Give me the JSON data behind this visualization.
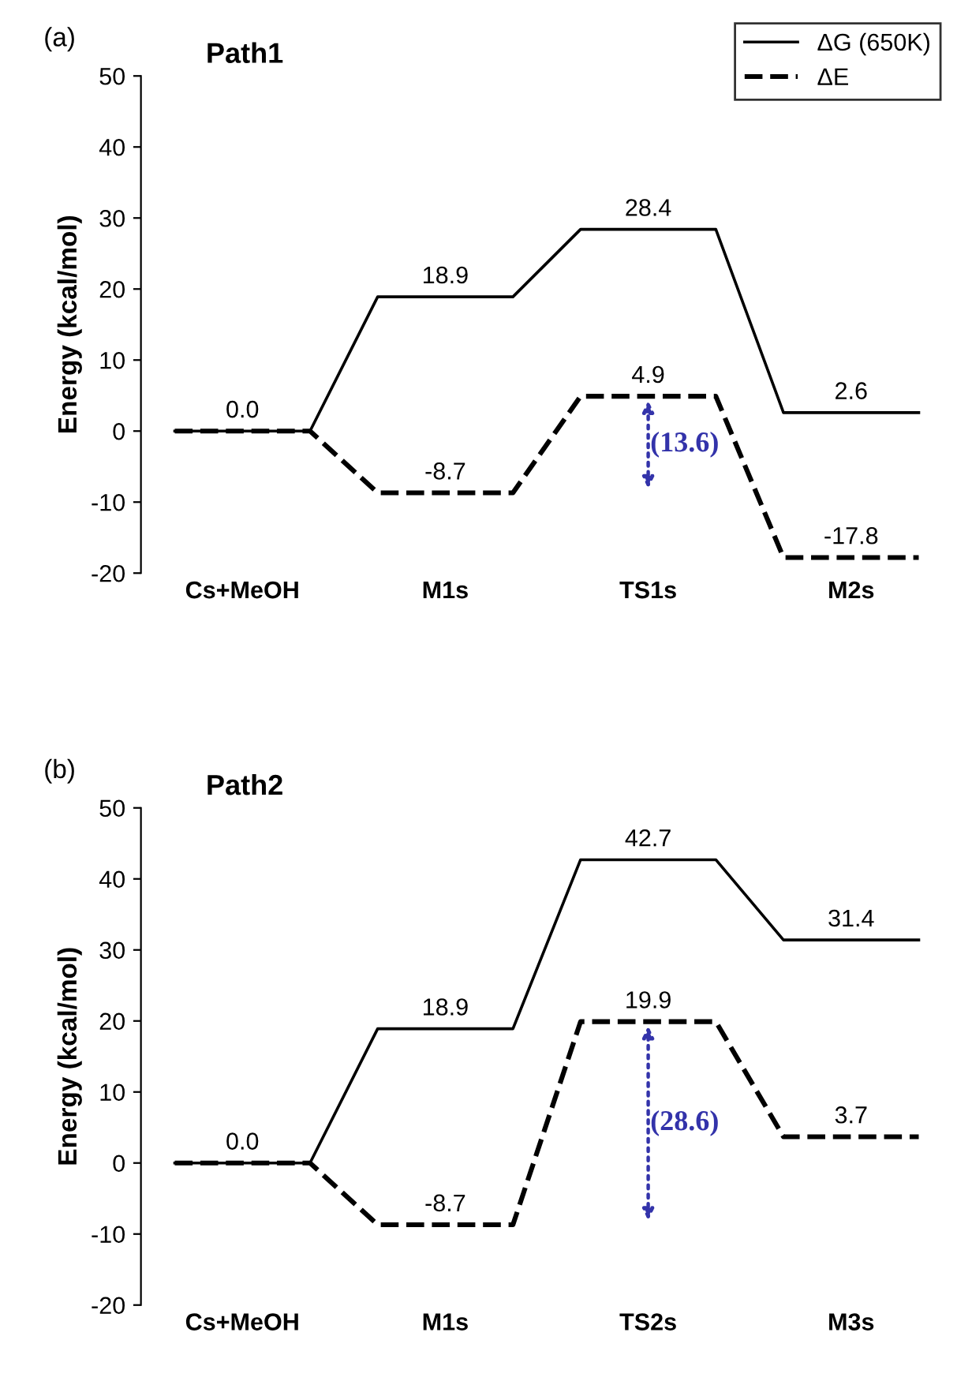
{
  "chart_data": [
    {
      "type": "line",
      "title": "Path1",
      "ylabel": "Energy (kcal/mol)",
      "categories": [
        null,
        "Cs+MeOH",
        null,
        null,
        "M1s",
        null,
        null,
        "TS1s",
        null,
        null,
        "M2s",
        null
      ],
      "ylim": [
        -20,
        50
      ],
      "yticks": [
        -20,
        -10,
        0,
        10,
        20,
        30,
        40,
        50
      ],
      "grid": false,
      "legend": "top right",
      "marker": "none",
      "series": [
        {
          "name": "ΔG (650K)",
          "color": "#000000",
          "line_style": "solid",
          "values": [
            0.0,
            0.0,
            0.0,
            18.9,
            18.9,
            18.9,
            28.4,
            28.4,
            28.4,
            2.6,
            2.6,
            2.6
          ],
          "value_labels": [
            null,
            "0.0",
            null,
            null,
            "18.9",
            null,
            null,
            "28.4",
            null,
            null,
            "2.6",
            null
          ]
        },
        {
          "name": "ΔE",
          "color": "#000000",
          "line_style": "dashed",
          "values": [
            0.0,
            0.0,
            0.0,
            -8.7,
            -8.7,
            -8.7,
            4.9,
            4.9,
            4.9,
            -17.8,
            -17.8,
            -17.8
          ],
          "value_labels": [
            null,
            null,
            null,
            null,
            "-8.7",
            null,
            null,
            "4.9",
            null,
            null,
            "-17.8",
            null
          ]
        }
      ],
      "annotations": [
        "(a)",
        "(13.6)"
      ]
    },
    {
      "type": "line",
      "title": "Path2",
      "ylabel": "Energy (kcal/mol)",
      "categories": [
        null,
        "Cs+MeOH",
        null,
        null,
        "M1s",
        null,
        null,
        "TS2s",
        null,
        null,
        "M3s",
        null
      ],
      "ylim": [
        -20,
        50
      ],
      "yticks": [
        -20,
        -10,
        0,
        10,
        20,
        30,
        40,
        50
      ],
      "grid": false,
      "marker": "none",
      "series": [
        {
          "color": "#000000",
          "line_style": "solid",
          "values": [
            0.0,
            0.0,
            0.0,
            18.9,
            18.9,
            18.9,
            42.7,
            42.7,
            42.7,
            31.4,
            31.4,
            31.4
          ],
          "value_labels": [
            null,
            "0.0",
            null,
            null,
            "18.9",
            null,
            null,
            "42.7",
            null,
            null,
            "31.4",
            null
          ]
        },
        {
          "color": "#000000",
          "line_style": "dashed",
          "values": [
            0.0,
            0.0,
            0.0,
            -8.7,
            -8.7,
            -8.7,
            19.9,
            19.9,
            19.9,
            3.7,
            3.7,
            3.7
          ],
          "value_labels": [
            null,
            null,
            null,
            null,
            "-8.7",
            null,
            null,
            "19.9",
            null,
            null,
            "3.7",
            null
          ]
        }
      ],
      "annotations": [
        "(b)",
        "(28.6)"
      ]
    }
  ]
}
